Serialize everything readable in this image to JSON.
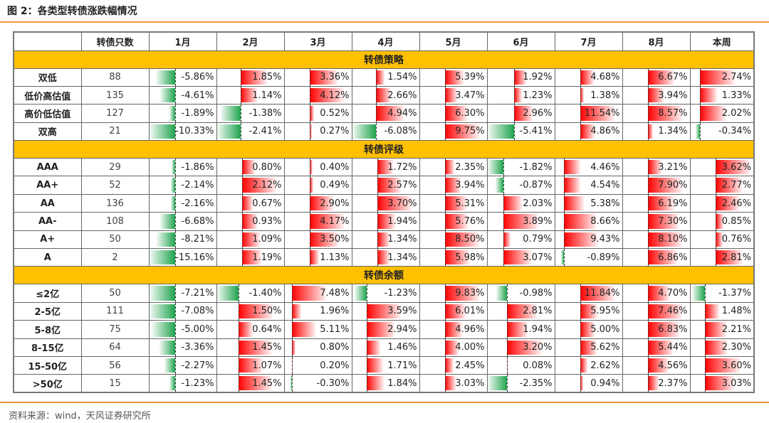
{
  "title": "图 2：各类型转债涨跌幅情况",
  "source": "资料来源：wind，天风证券研究所",
  "headers": [
    "",
    "转债只数",
    "1月",
    "2月",
    "3月",
    "4月",
    "5月",
    "6月",
    "7月",
    "8月",
    "本周"
  ],
  "colors": {
    "section_bg": "#ffc000",
    "positive": "#ff0000",
    "negative": "#1fa34d",
    "rule": "#f0913a"
  },
  "sections": [
    {
      "name": "转债策略",
      "rows": [
        {
          "label": "双低",
          "count": "88",
          "values": [
            -5.86,
            1.85,
            3.36,
            1.54,
            5.39,
            1.92,
            4.68,
            6.67,
            2.74
          ]
        },
        {
          "label": "低价高估值",
          "count": "135",
          "values": [
            -4.61,
            1.14,
            4.12,
            2.66,
            3.47,
            1.23,
            1.38,
            3.94,
            1.33
          ]
        },
        {
          "label": "高价低估值",
          "count": "127",
          "values": [
            -1.89,
            -1.38,
            0.52,
            4.94,
            6.3,
            2.96,
            11.54,
            8.57,
            2.02
          ]
        },
        {
          "label": "双高",
          "count": "21",
          "values": [
            -10.33,
            -2.41,
            0.27,
            -6.08,
            9.75,
            -5.41,
            4.86,
            1.34,
            -0.34
          ]
        }
      ]
    },
    {
      "name": "转债评级",
      "rows": [
        {
          "label": "AAA",
          "count": "29",
          "values": [
            -1.86,
            0.8,
            0.4,
            1.72,
            2.35,
            -1.82,
            4.46,
            3.21,
            3.62
          ]
        },
        {
          "label": "AA+",
          "count": "52",
          "values": [
            -2.14,
            2.12,
            0.49,
            2.57,
            3.94,
            -0.87,
            4.54,
            7.9,
            2.77
          ]
        },
        {
          "label": "AA",
          "count": "136",
          "values": [
            -2.16,
            0.67,
            2.9,
            3.7,
            5.31,
            2.03,
            5.38,
            6.19,
            2.46
          ]
        },
        {
          "label": "AA-",
          "count": "108",
          "values": [
            -6.68,
            0.93,
            4.17,
            1.94,
            5.76,
            3.89,
            8.66,
            7.3,
            0.85
          ]
        },
        {
          "label": "A+",
          "count": "50",
          "values": [
            -8.21,
            1.09,
            3.5,
            1.34,
            8.5,
            0.79,
            9.43,
            8.1,
            0.76
          ]
        },
        {
          "label": "A",
          "count": "2",
          "values": [
            -15.16,
            1.19,
            1.13,
            1.34,
            5.98,
            3.07,
            -0.89,
            6.86,
            2.81
          ]
        }
      ]
    },
    {
      "name": "转债余额",
      "rows": [
        {
          "label": "≤2亿",
          "count": "50",
          "values": [
            -7.21,
            -1.4,
            7.48,
            -1.23,
            9.83,
            -0.98,
            11.84,
            4.7,
            -1.37
          ]
        },
        {
          "label": "2-5亿",
          "count": "111",
          "values": [
            -7.08,
            1.5,
            1.96,
            3.59,
            6.01,
            2.81,
            5.95,
            7.46,
            1.48
          ]
        },
        {
          "label": "5-8亿",
          "count": "75",
          "values": [
            -5.0,
            0.64,
            5.11,
            2.94,
            4.96,
            1.94,
            5.0,
            6.83,
            2.21
          ]
        },
        {
          "label": "8-15亿",
          "count": "64",
          "values": [
            -3.36,
            1.45,
            0.8,
            1.46,
            4.0,
            3.2,
            5.62,
            5.44,
            2.3
          ]
        },
        {
          "label": "15-50亿",
          "count": "56",
          "values": [
            -2.27,
            1.07,
            0.2,
            1.71,
            2.45,
            0.08,
            2.62,
            4.56,
            3.6
          ]
        },
        {
          "label": ">50亿",
          "count": "15",
          "values": [
            -1.23,
            1.45,
            -0.3,
            1.84,
            3.03,
            -2.35,
            0.94,
            2.37,
            3.03
          ]
        }
      ]
    }
  ]
}
